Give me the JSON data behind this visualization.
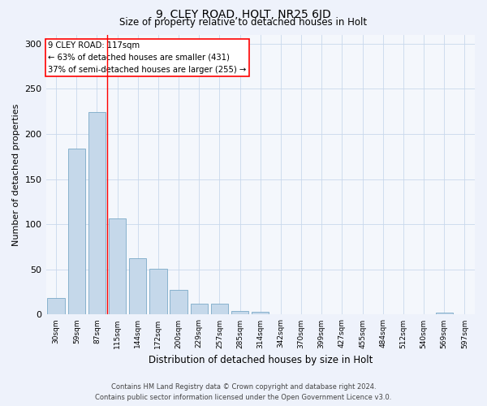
{
  "title": "9, CLEY ROAD, HOLT, NR25 6JD",
  "subtitle": "Size of property relative to detached houses in Holt",
  "xlabel": "Distribution of detached houses by size in Holt",
  "ylabel": "Number of detached properties",
  "bar_labels": [
    "30sqm",
    "59sqm",
    "87sqm",
    "115sqm",
    "144sqm",
    "172sqm",
    "200sqm",
    "229sqm",
    "257sqm",
    "285sqm",
    "314sqm",
    "342sqm",
    "370sqm",
    "399sqm",
    "427sqm",
    "455sqm",
    "484sqm",
    "512sqm",
    "540sqm",
    "569sqm",
    "597sqm"
  ],
  "bar_values": [
    18,
    184,
    224,
    106,
    62,
    51,
    27,
    12,
    12,
    4,
    3,
    0,
    0,
    0,
    0,
    0,
    0,
    0,
    0,
    2,
    0
  ],
  "bar_color": "#c5d8ea",
  "bar_edge_color": "#7aaac8",
  "property_line_label": "9 CLEY ROAD: 117sqm",
  "annotation_line1": "← 63% of detached houses are smaller (431)",
  "annotation_line2": "37% of semi-detached houses are larger (255) →",
  "ylim": [
    0,
    310
  ],
  "yticks": [
    0,
    50,
    100,
    150,
    200,
    250,
    300
  ],
  "footnote1": "Contains HM Land Registry data © Crown copyright and database right 2024.",
  "footnote2": "Contains public sector information licensed under the Open Government Licence v3.0.",
  "bg_color": "#eef2fb",
  "plot_bg_color": "#f4f7fc"
}
